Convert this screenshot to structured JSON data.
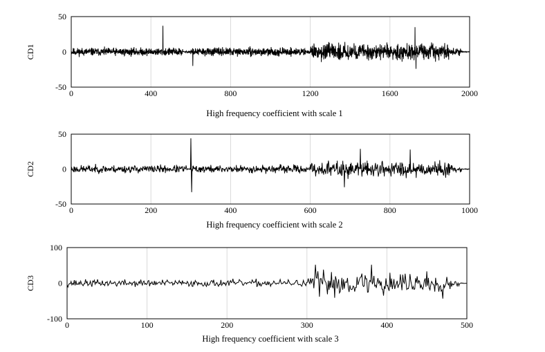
{
  "chart_data": [
    {
      "type": "line",
      "ylabel": "CD1",
      "xlabel": "High frequency coefficient with scale 1",
      "xlim": [
        0,
        2000
      ],
      "ylim": [
        -50,
        50
      ],
      "x_ticks": [
        0,
        400,
        800,
        1200,
        1600,
        2000
      ],
      "y_ticks": [
        50,
        0,
        -50
      ],
      "x_tick_labels": [
        "0",
        "400",
        "800",
        "1200",
        "1600",
        "2000"
      ],
      "y_tick_labels": [
        "50",
        "0",
        "-50"
      ],
      "grid": "vertical",
      "series": [
        {
          "n_points": 2000,
          "segments": [
            {
              "from": 0,
              "to": 560,
              "amplitude": 5
            },
            {
              "from": 560,
              "to": 600,
              "amplitude": 1
            },
            {
              "from": 600,
              "to": 1180,
              "amplitude": 5
            },
            {
              "from": 1180,
              "to": 1200,
              "amplitude": 2
            },
            {
              "from": 1200,
              "to": 1900,
              "amplitude": 10
            },
            {
              "from": 1900,
              "to": 1960,
              "amplitude": 4
            },
            {
              "from": 1960,
              "to": 2000,
              "amplitude": 0.5
            }
          ],
          "spikes": [
            [
              460,
              37
            ],
            [
              610,
              -20
            ],
            [
              1725,
              35
            ],
            [
              1730,
              -24
            ]
          ]
        }
      ]
    },
    {
      "type": "line",
      "ylabel": "CD2",
      "xlabel": "High frequency coefficient with scale 2",
      "xlim": [
        0,
        1000
      ],
      "ylim": [
        -50,
        50
      ],
      "x_ticks": [
        0,
        200,
        400,
        600,
        800,
        1000
      ],
      "y_ticks": [
        50,
        0,
        -50
      ],
      "x_tick_labels": [
        "0",
        "200",
        "400",
        "600",
        "800",
        "1000"
      ],
      "y_tick_labels": [
        "50",
        "0",
        "-50"
      ],
      "grid": "vertical",
      "series": [
        {
          "n_points": 1000,
          "segments": [
            {
              "from": 0,
              "to": 290,
              "amplitude": 5
            },
            {
              "from": 290,
              "to": 300,
              "amplitude": 1
            },
            {
              "from": 300,
              "to": 590,
              "amplitude": 5
            },
            {
              "from": 590,
              "to": 600,
              "amplitude": 2
            },
            {
              "from": 600,
              "to": 950,
              "amplitude": 10
            },
            {
              "from": 950,
              "to": 980,
              "amplitude": 4
            },
            {
              "from": 980,
              "to": 1000,
              "amplitude": 0.5
            }
          ],
          "spikes": [
            [
              300,
              44
            ],
            [
              302,
              -33
            ],
            [
              685,
              -26
            ],
            [
              725,
              29
            ],
            [
              850,
              28
            ]
          ]
        }
      ]
    },
    {
      "type": "line",
      "ylabel": "CD3",
      "xlabel": "High frequency coefficient with scale 3",
      "xlim": [
        0,
        500
      ],
      "ylim": [
        -100,
        100
      ],
      "x_ticks": [
        0,
        100,
        200,
        300,
        400,
        500
      ],
      "y_ticks": [
        100,
        0,
        -100
      ],
      "x_tick_labels": [
        "0",
        "100",
        "200",
        "300",
        "400",
        "500"
      ],
      "y_tick_labels": [
        "100",
        "0",
        "-100"
      ],
      "grid": "vertical",
      "series": [
        {
          "n_points": 500,
          "segments": [
            {
              "from": 0,
              "to": 145,
              "amplitude": 9
            },
            {
              "from": 145,
              "to": 150,
              "amplitude": 2
            },
            {
              "from": 150,
              "to": 295,
              "amplitude": 9
            },
            {
              "from": 295,
              "to": 305,
              "amplitude": 12
            },
            {
              "from": 305,
              "to": 480,
              "amplitude": 30
            },
            {
              "from": 480,
              "to": 490,
              "amplitude": 10
            },
            {
              "from": 490,
              "to": 500,
              "amplitude": 1
            }
          ],
          "spikes": [
            [
              310,
              52
            ],
            [
              380,
              52
            ],
            [
              315,
              -38
            ],
            [
              395,
              -35
            ]
          ]
        }
      ]
    }
  ]
}
